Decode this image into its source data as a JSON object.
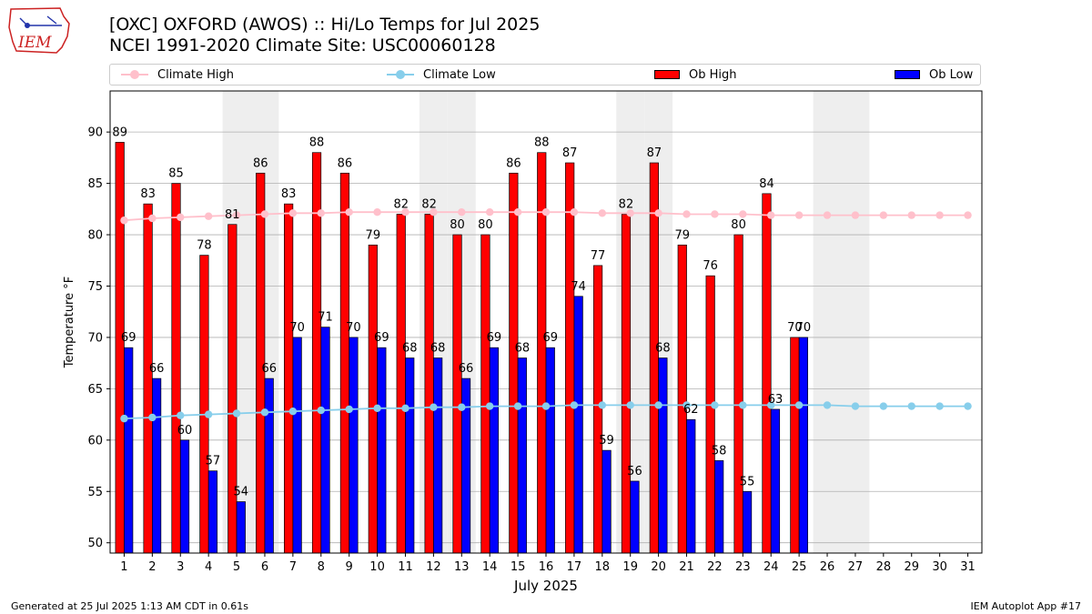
{
  "title_line1": "[OXC] OXFORD (AWOS) :: Hi/Lo Temps for Jul 2025",
  "title_line2": "NCEI 1991-2020 Climate Site: USC00060128",
  "logo_text": "IEM",
  "footer_left": "Generated at 25 Jul 2025 1:13 AM CDT in 0.61s",
  "footer_right": "IEM Autoplot App #17",
  "colors": {
    "ob_high": "#ff0000",
    "ob_low": "#0000ff",
    "climate_high": "#ffc0cb",
    "climate_low": "#87ceeb",
    "weekend_shade": "#eeeeee",
    "grid": "#b0b0b0",
    "logo": "#cc2222"
  },
  "legend": [
    {
      "label": "Climate High",
      "kind": "line",
      "color": "#ffc0cb"
    },
    {
      "label": "Climate Low",
      "kind": "line",
      "color": "#87ceeb"
    },
    {
      "label": "Ob High",
      "kind": "bar",
      "color": "#ff0000"
    },
    {
      "label": "Ob Low",
      "kind": "bar",
      "color": "#0000ff"
    }
  ],
  "chart_data": {
    "type": "bar",
    "xlabel": "July 2025",
    "ylabel": "Temperature °F",
    "ylim": [
      49,
      94
    ],
    "yticks": [
      50,
      55,
      60,
      65,
      70,
      75,
      80,
      85,
      90
    ],
    "grid": "horizontal",
    "legend_position": "top",
    "categories": [
      "1",
      "2",
      "3",
      "4",
      "5",
      "6",
      "7",
      "8",
      "9",
      "10",
      "11",
      "12",
      "13",
      "14",
      "15",
      "16",
      "17",
      "18",
      "19",
      "20",
      "21",
      "22",
      "23",
      "24",
      "25",
      "26",
      "27",
      "28",
      "29",
      "30",
      "31"
    ],
    "shaded_days": [
      5,
      6,
      12,
      13,
      19,
      20,
      26,
      27
    ],
    "series": [
      {
        "name": "Ob High",
        "type": "bar",
        "values": [
          89,
          83,
          85,
          78,
          81,
          86,
          83,
          88,
          86,
          79,
          82,
          82,
          80,
          80,
          86,
          88,
          87,
          77,
          82,
          87,
          79,
          76,
          80,
          84,
          70,
          null,
          null,
          null,
          null,
          null,
          null
        ]
      },
      {
        "name": "Ob Low",
        "type": "bar",
        "values": [
          69,
          66,
          60,
          57,
          54,
          66,
          70,
          71,
          70,
          69,
          68,
          68,
          66,
          69,
          68,
          69,
          74,
          59,
          56,
          68,
          62,
          58,
          55,
          63,
          70,
          null,
          null,
          null,
          null,
          null,
          null
        ]
      },
      {
        "name": "Climate High",
        "type": "line",
        "values": [
          81.4,
          81.6,
          81.7,
          81.8,
          81.9,
          82.0,
          82.1,
          82.1,
          82.2,
          82.2,
          82.2,
          82.2,
          82.2,
          82.2,
          82.2,
          82.2,
          82.2,
          82.1,
          82.1,
          82.1,
          82.0,
          82.0,
          82.0,
          81.9,
          81.9,
          81.9,
          81.9,
          81.9,
          81.9,
          81.9,
          81.9
        ]
      },
      {
        "name": "Climate Low",
        "type": "line",
        "values": [
          62.1,
          62.2,
          62.4,
          62.5,
          62.6,
          62.7,
          62.8,
          62.9,
          63.0,
          63.1,
          63.1,
          63.2,
          63.2,
          63.3,
          63.3,
          63.3,
          63.4,
          63.4,
          63.4,
          63.4,
          63.4,
          63.4,
          63.4,
          63.4,
          63.4,
          63.4,
          63.3,
          63.3,
          63.3,
          63.3,
          63.3
        ]
      }
    ]
  }
}
